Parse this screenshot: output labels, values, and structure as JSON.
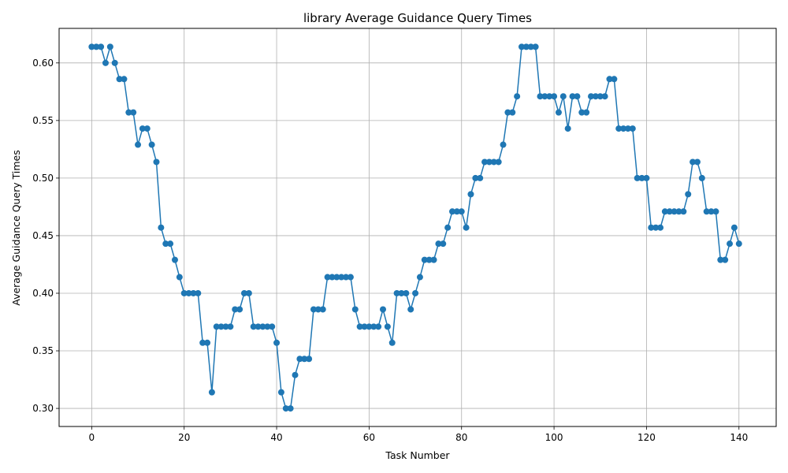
{
  "chart_data": {
    "type": "line",
    "title": "library Average Guidance Query Times",
    "xlabel": "Task Number",
    "ylabel": "Average Guidance Query Times",
    "xlim": [
      -7.05,
      148.05
    ],
    "ylim": [
      0.2843,
      0.63
    ],
    "xticks": [
      0,
      20,
      40,
      60,
      80,
      100,
      120,
      140
    ],
    "yticks": [
      0.3,
      0.35,
      0.4,
      0.45,
      0.5,
      0.55,
      0.6
    ],
    "ytick_labels": [
      "0.30",
      "0.35",
      "0.40",
      "0.45",
      "0.50",
      "0.55",
      "0.60"
    ],
    "grid": true,
    "color": "#1f77b4",
    "marker": "circle",
    "x_start": 0,
    "values": [
      0.614,
      0.614,
      0.614,
      0.6,
      0.614,
      0.6,
      0.586,
      0.586,
      0.557,
      0.557,
      0.529,
      0.543,
      0.543,
      0.529,
      0.514,
      0.457,
      0.443,
      0.443,
      0.429,
      0.414,
      0.4,
      0.4,
      0.4,
      0.4,
      0.357,
      0.357,
      0.314,
      0.371,
      0.371,
      0.371,
      0.371,
      0.386,
      0.386,
      0.4,
      0.4,
      0.371,
      0.371,
      0.371,
      0.371,
      0.371,
      0.357,
      0.314,
      0.3,
      0.3,
      0.329,
      0.343,
      0.343,
      0.343,
      0.386,
      0.386,
      0.386,
      0.414,
      0.414,
      0.414,
      0.414,
      0.414,
      0.414,
      0.386,
      0.371,
      0.371,
      0.371,
      0.371,
      0.371,
      0.386,
      0.371,
      0.357,
      0.4,
      0.4,
      0.4,
      0.386,
      0.4,
      0.414,
      0.429,
      0.429,
      0.429,
      0.443,
      0.443,
      0.457,
      0.471,
      0.471,
      0.471,
      0.457,
      0.486,
      0.5,
      0.5,
      0.514,
      0.514,
      0.514,
      0.514,
      0.529,
      0.557,
      0.557,
      0.571,
      0.614,
      0.614,
      0.614,
      0.614,
      0.571,
      0.571,
      0.571,
      0.571,
      0.557,
      0.571,
      0.543,
      0.571,
      0.571,
      0.557,
      0.557,
      0.571,
      0.571,
      0.571,
      0.571,
      0.586,
      0.586,
      0.543,
      0.543,
      0.543,
      0.543,
      0.5,
      0.5,
      0.5,
      0.457,
      0.457,
      0.457,
      0.471,
      0.471,
      0.471,
      0.471,
      0.471,
      0.486,
      0.514,
      0.514,
      0.5,
      0.471,
      0.471,
      0.471,
      0.429,
      0.429,
      0.443,
      0.457,
      0.443
    ]
  }
}
